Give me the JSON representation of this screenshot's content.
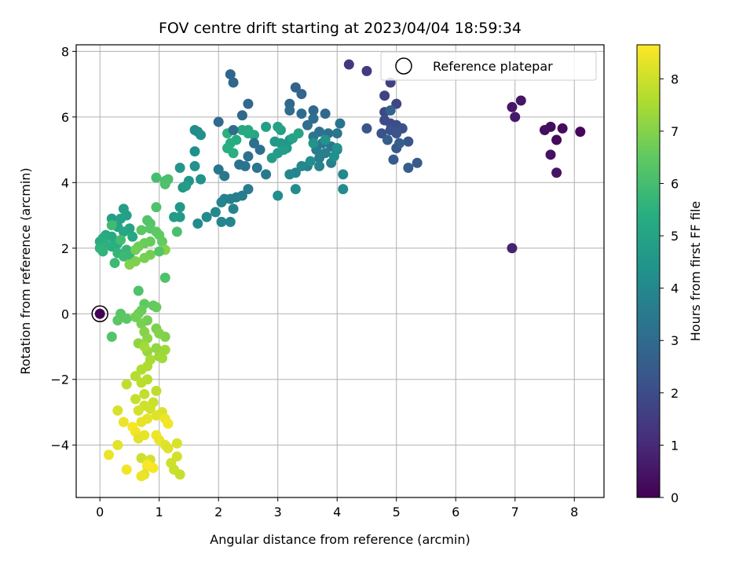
{
  "chart_data": {
    "type": "scatter",
    "title": "FOV centre drift starting at 2023/04/04 18:59:34",
    "xlabel": "Angular distance from reference (arcmin)",
    "ylabel": "Rotation from reference (arcmin)",
    "xlim": [
      -0.4,
      8.5
    ],
    "ylim": [
      -5.6,
      8.2
    ],
    "x_ticks": [
      0,
      1,
      2,
      3,
      4,
      5,
      6,
      7,
      8
    ],
    "y_ticks": [
      -4,
      -2,
      0,
      2,
      4,
      6,
      8
    ],
    "grid": true,
    "colormap": "viridis",
    "colorbar": {
      "label": "Hours from first FF file",
      "range": [
        0,
        8.65
      ],
      "ticks": [
        0,
        1,
        2,
        3,
        4,
        5,
        6,
        7,
        8
      ]
    },
    "legend": {
      "placement": "top-right",
      "entries": [
        "Reference platepar"
      ]
    },
    "reference_point": {
      "x": 0,
      "y": 0
    },
    "series": [
      {
        "points": [
          [
            0.0,
            0.0,
            0.0
          ],
          [
            8.1,
            5.55,
            0.15
          ],
          [
            7.7,
            5.3,
            0.2
          ],
          [
            7.8,
            5.65,
            0.25
          ],
          [
            7.6,
            5.7,
            0.3
          ],
          [
            7.5,
            5.6,
            0.35
          ],
          [
            7.6,
            4.85,
            0.4
          ],
          [
            7.7,
            4.3,
            0.45
          ],
          [
            7.1,
            6.5,
            0.5
          ],
          [
            6.95,
            6.3,
            0.55
          ],
          [
            7.0,
            6.0,
            0.6
          ],
          [
            6.95,
            2.0,
            0.8
          ],
          [
            4.2,
            7.6,
            1.4
          ],
          [
            4.5,
            7.4,
            1.5
          ],
          [
            4.9,
            7.05,
            1.6
          ],
          [
            4.8,
            6.65,
            1.7
          ],
          [
            5.0,
            6.4,
            1.8
          ],
          [
            4.8,
            6.15,
            1.9
          ],
          [
            4.8,
            5.9,
            1.95
          ],
          [
            4.9,
            5.8,
            2.0
          ],
          [
            5.0,
            5.75,
            2.05
          ],
          [
            5.1,
            5.65,
            2.1
          ],
          [
            4.9,
            5.6,
            2.15
          ],
          [
            4.75,
            5.5,
            2.2
          ],
          [
            5.0,
            5.5,
            2.25
          ],
          [
            4.5,
            5.65,
            2.3
          ],
          [
            5.2,
            5.25,
            2.35
          ],
          [
            5.0,
            5.05,
            2.4
          ],
          [
            4.95,
            4.7,
            2.45
          ],
          [
            5.35,
            4.6,
            2.5
          ],
          [
            5.2,
            4.45,
            2.55
          ],
          [
            4.85,
            5.3,
            2.6
          ],
          [
            5.05,
            5.2,
            2.65
          ],
          [
            4.9,
            6.2,
            2.7
          ],
          [
            3.3,
            6.9,
            2.75
          ],
          [
            3.4,
            6.7,
            2.8
          ],
          [
            3.2,
            6.4,
            2.85
          ],
          [
            3.6,
            6.2,
            2.9
          ],
          [
            3.8,
            6.1,
            2.95
          ],
          [
            3.4,
            6.1,
            3.0
          ],
          [
            3.2,
            6.2,
            3.05
          ],
          [
            3.6,
            5.95,
            3.1
          ],
          [
            3.5,
            5.75,
            3.15
          ],
          [
            3.7,
            5.55,
            3.2
          ],
          [
            3.85,
            5.5,
            3.25
          ],
          [
            4.05,
            5.8,
            3.3
          ],
          [
            4.0,
            5.5,
            3.35
          ],
          [
            3.6,
            5.4,
            3.4
          ],
          [
            3.75,
            5.2,
            3.45
          ],
          [
            3.9,
            5.1,
            3.5
          ],
          [
            4.0,
            5.0,
            3.55
          ],
          [
            3.65,
            5.0,
            3.6
          ],
          [
            3.8,
            4.9,
            3.65
          ],
          [
            3.7,
            4.75,
            3.7
          ],
          [
            3.9,
            4.6,
            3.75
          ],
          [
            3.7,
            4.5,
            3.8
          ],
          [
            3.5,
            4.5,
            3.85
          ],
          [
            3.3,
            4.3,
            3.9
          ],
          [
            3.2,
            4.25,
            3.95
          ],
          [
            3.4,
            4.5,
            4.0
          ],
          [
            4.1,
            4.25,
            4.05
          ],
          [
            4.1,
            3.8,
            4.1
          ],
          [
            3.3,
            3.8,
            4.15
          ],
          [
            3.0,
            3.6,
            4.2
          ],
          [
            3.55,
            4.65,
            4.25
          ],
          [
            3.95,
            4.8,
            4.3
          ],
          [
            4.0,
            5.05,
            4.35
          ],
          [
            3.8,
            5.3,
            4.4
          ],
          [
            3.6,
            5.2,
            4.45
          ],
          [
            3.2,
            5.3,
            4.5
          ],
          [
            3.05,
            5.2,
            4.55
          ],
          [
            2.95,
            5.25,
            4.6
          ],
          [
            3.15,
            5.05,
            4.65
          ],
          [
            3.0,
            4.9,
            4.7
          ],
          [
            2.9,
            4.75,
            4.75
          ],
          [
            3.1,
            5.0,
            4.8
          ],
          [
            2.8,
            5.7,
            4.85
          ],
          [
            3.05,
            5.6,
            4.9
          ],
          [
            3.0,
            5.7,
            4.95
          ],
          [
            3.25,
            5.35,
            5.0
          ],
          [
            3.35,
            5.5,
            5.05
          ],
          [
            2.6,
            5.45,
            5.1
          ],
          [
            2.5,
            5.6,
            5.15
          ],
          [
            2.4,
            5.6,
            5.2
          ],
          [
            2.5,
            5.5,
            5.25
          ],
          [
            2.3,
            5.3,
            5.3
          ],
          [
            2.2,
            5.2,
            5.35
          ],
          [
            2.15,
            5.05,
            5.4
          ],
          [
            2.25,
            4.9,
            5.45
          ],
          [
            2.15,
            5.5,
            5.5
          ],
          [
            2.2,
            7.3,
            2.8
          ],
          [
            2.25,
            7.05,
            2.85
          ],
          [
            2.5,
            6.4,
            2.9
          ],
          [
            2.4,
            6.05,
            2.95
          ],
          [
            2.0,
            5.85,
            3.0
          ],
          [
            2.25,
            5.6,
            3.05
          ],
          [
            2.6,
            5.2,
            3.1
          ],
          [
            2.7,
            5.0,
            3.15
          ],
          [
            2.5,
            4.8,
            3.2
          ],
          [
            2.35,
            4.55,
            3.25
          ],
          [
            2.45,
            4.5,
            3.3
          ],
          [
            2.65,
            4.45,
            3.35
          ],
          [
            2.0,
            4.4,
            3.4
          ],
          [
            2.1,
            4.2,
            3.45
          ],
          [
            2.8,
            4.25,
            3.5
          ],
          [
            2.5,
            3.8,
            3.55
          ],
          [
            2.4,
            3.6,
            3.6
          ],
          [
            2.3,
            3.55,
            3.65
          ],
          [
            2.2,
            3.5,
            3.7
          ],
          [
            2.1,
            3.5,
            3.75
          ],
          [
            2.05,
            3.4,
            3.8
          ],
          [
            2.25,
            3.2,
            3.85
          ],
          [
            2.2,
            2.8,
            3.9
          ],
          [
            2.05,
            2.8,
            3.95
          ],
          [
            1.95,
            3.1,
            4.0
          ],
          [
            1.8,
            2.95,
            4.05
          ],
          [
            1.65,
            2.75,
            4.1
          ],
          [
            1.6,
            5.6,
            4.15
          ],
          [
            1.65,
            5.55,
            4.2
          ],
          [
            1.7,
            5.45,
            4.25
          ],
          [
            1.6,
            4.95,
            4.3
          ],
          [
            1.6,
            4.5,
            4.35
          ],
          [
            1.7,
            4.1,
            4.4
          ],
          [
            1.5,
            4.05,
            4.45
          ],
          [
            1.35,
            4.45,
            4.5
          ],
          [
            1.4,
            3.85,
            4.55
          ],
          [
            1.35,
            3.25,
            4.6
          ],
          [
            1.35,
            2.95,
            4.65
          ],
          [
            1.25,
            2.95,
            4.7
          ],
          [
            1.45,
            3.9,
            4.75
          ],
          [
            0.2,
            2.9,
            4.8
          ],
          [
            0.4,
            3.2,
            4.85
          ],
          [
            0.45,
            3.0,
            4.9
          ],
          [
            0.35,
            2.9,
            4.95
          ],
          [
            0.3,
            2.65,
            5.0
          ],
          [
            0.5,
            2.6,
            5.05
          ],
          [
            0.4,
            2.5,
            5.1
          ],
          [
            0.55,
            2.35,
            5.15
          ],
          [
            0.1,
            2.4,
            5.2
          ],
          [
            0.2,
            2.35,
            5.25
          ],
          [
            0.05,
            2.3,
            5.3
          ],
          [
            0.0,
            2.2,
            5.35
          ],
          [
            0.3,
            2.15,
            5.4
          ],
          [
            0.2,
            2.05,
            5.45
          ],
          [
            0.1,
            2.1,
            5.5
          ],
          [
            0.0,
            2.0,
            5.55
          ],
          [
            0.05,
            1.9,
            5.6
          ],
          [
            0.3,
            1.85,
            5.65
          ],
          [
            0.45,
            1.95,
            5.7
          ],
          [
            0.5,
            1.8,
            5.75
          ],
          [
            0.4,
            1.75,
            5.8
          ],
          [
            0.25,
            1.55,
            5.85
          ],
          [
            0.2,
            2.7,
            5.9
          ],
          [
            0.35,
            2.25,
            5.95
          ],
          [
            0.95,
            4.15,
            6.0
          ],
          [
            1.1,
            4.05,
            6.05
          ],
          [
            1.15,
            4.1,
            6.1
          ],
          [
            1.1,
            3.95,
            6.15
          ],
          [
            0.95,
            3.25,
            6.2
          ],
          [
            0.8,
            2.85,
            6.25
          ],
          [
            0.85,
            2.75,
            6.3
          ],
          [
            0.85,
            2.6,
            6.35
          ],
          [
            0.7,
            2.55,
            6.4
          ],
          [
            0.95,
            2.5,
            6.45
          ],
          [
            1.0,
            2.4,
            6.5
          ],
          [
            1.05,
            2.2,
            6.55
          ],
          [
            0.85,
            2.2,
            6.6
          ],
          [
            0.75,
            2.15,
            6.65
          ],
          [
            0.65,
            2.05,
            6.7
          ],
          [
            0.6,
            1.95,
            6.75
          ],
          [
            0.85,
            1.8,
            6.8
          ],
          [
            0.75,
            1.7,
            6.85
          ],
          [
            0.6,
            1.6,
            6.9
          ],
          [
            0.5,
            1.5,
            6.95
          ],
          [
            1.1,
            1.95,
            7.0
          ],
          [
            1.3,
            2.5,
            6.1
          ],
          [
            1.1,
            1.1,
            6.2
          ],
          [
            1.0,
            1.9,
            6.3
          ],
          [
            0.65,
            0.7,
            6.2
          ],
          [
            0.2,
            -0.7,
            6.3
          ],
          [
            0.35,
            0.0,
            6.35
          ],
          [
            0.3,
            -0.2,
            6.4
          ],
          [
            0.45,
            -0.15,
            6.45
          ],
          [
            0.75,
            0.3,
            6.5
          ],
          [
            0.9,
            0.25,
            6.55
          ],
          [
            0.95,
            0.2,
            6.6
          ],
          [
            0.7,
            0.1,
            6.65
          ],
          [
            0.65,
            0.0,
            6.7
          ],
          [
            0.6,
            -0.1,
            6.75
          ],
          [
            0.8,
            -0.2,
            6.8
          ],
          [
            0.7,
            -0.3,
            6.85
          ],
          [
            0.95,
            -0.45,
            6.9
          ],
          [
            1.1,
            -0.7,
            6.95
          ],
          [
            1.0,
            -0.6,
            7.0
          ],
          [
            0.75,
            -0.55,
            7.05
          ],
          [
            0.8,
            -0.75,
            7.1
          ],
          [
            0.65,
            -0.9,
            7.15
          ],
          [
            0.95,
            -1.05,
            7.2
          ],
          [
            0.8,
            -1.15,
            7.25
          ],
          [
            1.0,
            -1.3,
            7.3
          ],
          [
            1.1,
            -1.1,
            7.35
          ],
          [
            1.05,
            -1.35,
            7.4
          ],
          [
            0.75,
            -1.0,
            7.45
          ],
          [
            0.85,
            -1.4,
            7.5
          ],
          [
            0.8,
            -1.6,
            7.55
          ],
          [
            0.7,
            -1.7,
            7.6
          ],
          [
            0.6,
            -1.9,
            7.65
          ],
          [
            0.8,
            -2.0,
            7.7
          ],
          [
            0.7,
            -2.1,
            7.75
          ],
          [
            0.45,
            -2.15,
            7.8
          ],
          [
            0.95,
            -2.35,
            7.8
          ],
          [
            0.75,
            -2.45,
            7.85
          ],
          [
            0.6,
            -2.6,
            7.9
          ],
          [
            0.9,
            -2.7,
            7.95
          ],
          [
            0.75,
            -2.8,
            8.0
          ],
          [
            0.85,
            -2.9,
            8.05
          ],
          [
            0.65,
            -2.95,
            8.1
          ],
          [
            0.3,
            -2.95,
            8.15
          ],
          [
            1.05,
            -3.0,
            8.2
          ],
          [
            0.95,
            -3.1,
            8.25
          ],
          [
            0.8,
            -3.2,
            8.3
          ],
          [
            0.7,
            -3.3,
            8.35
          ],
          [
            0.4,
            -3.3,
            8.4
          ],
          [
            1.1,
            -3.2,
            8.45
          ],
          [
            1.15,
            -3.35,
            8.5
          ],
          [
            0.55,
            -3.45,
            8.55
          ],
          [
            0.6,
            -3.6,
            8.5
          ],
          [
            0.95,
            -3.7,
            8.45
          ],
          [
            1.0,
            -3.85,
            8.4
          ],
          [
            0.75,
            -3.7,
            8.35
          ],
          [
            0.65,
            -3.8,
            8.3
          ],
          [
            0.3,
            -4.0,
            8.3
          ],
          [
            1.1,
            -4.0,
            8.25
          ],
          [
            1.15,
            -4.1,
            8.2
          ],
          [
            1.3,
            -3.95,
            8.15
          ],
          [
            0.15,
            -4.3,
            8.4
          ],
          [
            1.3,
            -4.35,
            8.05
          ],
          [
            1.2,
            -4.55,
            8.0
          ],
          [
            1.25,
            -4.75,
            7.95
          ],
          [
            1.35,
            -4.9,
            7.9
          ],
          [
            0.7,
            -4.4,
            8.0
          ],
          [
            0.85,
            -4.45,
            8.1
          ],
          [
            0.8,
            -4.65,
            8.2
          ],
          [
            0.75,
            -4.9,
            8.3
          ],
          [
            0.7,
            -4.95,
            8.4
          ],
          [
            0.45,
            -4.75,
            8.5
          ],
          [
            0.9,
            -4.7,
            8.55
          ],
          [
            0.8,
            -4.6,
            8.6
          ]
        ]
      }
    ]
  }
}
